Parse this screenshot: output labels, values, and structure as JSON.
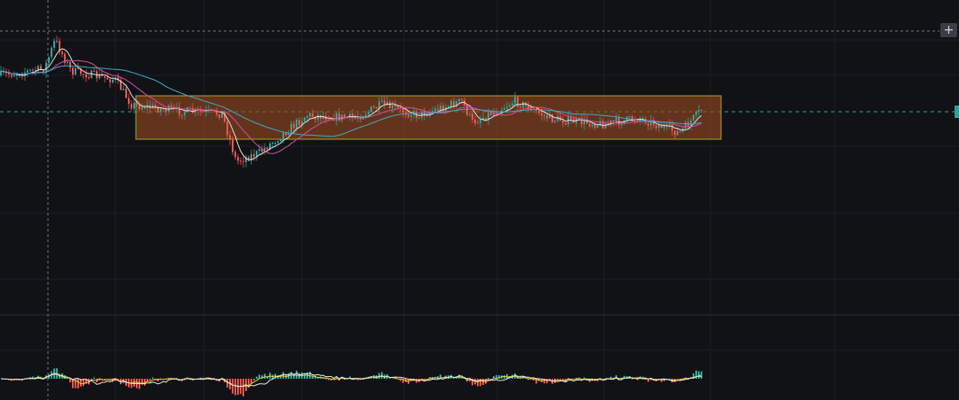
{
  "toolbar": {
    "add_button": "+"
  }
}
